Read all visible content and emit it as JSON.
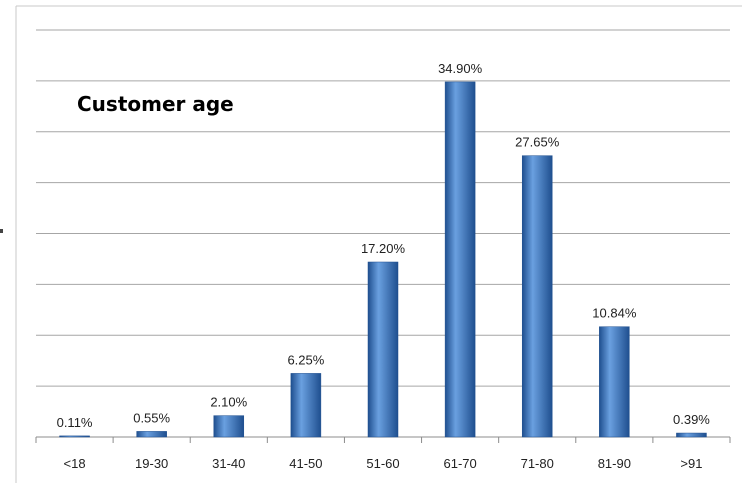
{
  "chart_data": {
    "type": "bar",
    "title": "Customer age",
    "xlabel": "",
    "ylabel": "",
    "categories": [
      "<18",
      "19-30",
      "31-40",
      "41-50",
      "51-60",
      "61-70",
      "71-80",
      "81-90",
      ">91"
    ],
    "values": [
      0.11,
      0.55,
      2.1,
      6.25,
      17.2,
      34.9,
      27.65,
      10.84,
      0.39
    ],
    "data_labels": [
      "0.11%",
      "0.55%",
      "2.10%",
      "6.25%",
      "17.20%",
      "34.90%",
      "27.65%",
      "10.84%",
      "0.39%"
    ],
    "ylim": [
      0,
      40
    ],
    "grid": true,
    "legend": "none",
    "colors": {
      "bar": "#3f7fc8",
      "bar_dark": "#1f4f8f",
      "bar_light": "#6aa0e0",
      "grid": "#a6a6a6"
    }
  }
}
